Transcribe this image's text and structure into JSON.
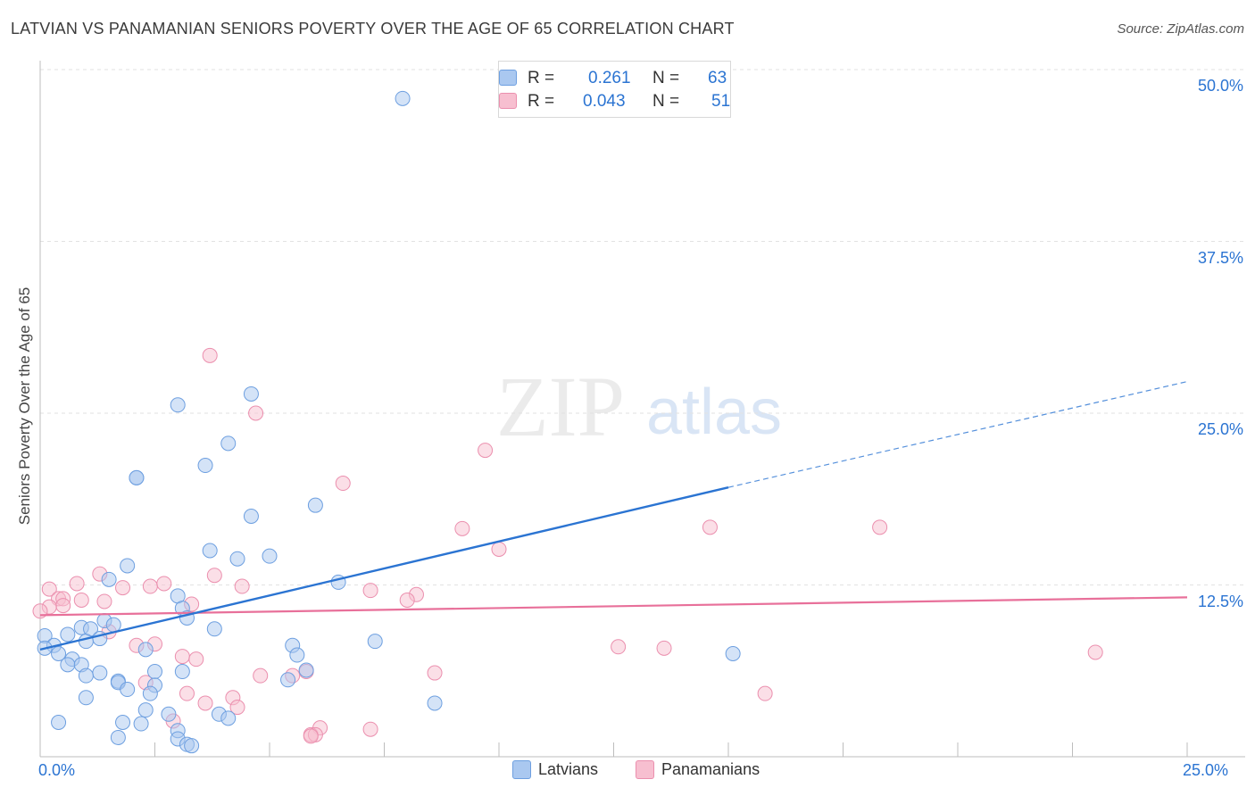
{
  "title": "LATVIAN VS PANAMANIAN SENIORS POVERTY OVER THE AGE OF 65 CORRELATION CHART",
  "source": "Source: ZipAtlas.com",
  "watermark": {
    "zip": "ZIP",
    "atlas": "atlas"
  },
  "legend": {
    "latvians": {
      "r_label": "R =",
      "r_value": "0.261",
      "n_label": "N =",
      "n_value": "63"
    },
    "panamanians": {
      "r_label": "R =",
      "r_value": "0.043",
      "n_label": "N =",
      "n_value": "51"
    }
  },
  "colors": {
    "latvians_fill": "#aac8f0",
    "latvians_stroke": "#6d9fe0",
    "latvians_line": "#2b74d2",
    "panamanians_fill": "#f7bfd0",
    "panamanians_stroke": "#eb8fae",
    "panamanians_line": "#e8709a",
    "grid": "#e2e2e2",
    "axis_text": "#2b74d2"
  },
  "chart_data": {
    "type": "scatter",
    "title": "LATVIAN VS PANAMANIAN SENIORS POVERTY OVER THE AGE OF 65 CORRELATION CHART",
    "xlabel": "",
    "ylabel": "Seniors Poverty Over the Age of 65",
    "xlim": [
      0,
      25
    ],
    "ylim": [
      0,
      50
    ],
    "x_tick_labels": [
      "0.0%",
      "25.0%"
    ],
    "y_ticks": [
      12.5,
      25.0,
      37.5,
      50.0
    ],
    "y_tick_labels": [
      "12.5%",
      "25.0%",
      "37.5%",
      "50.0%"
    ],
    "grid": true,
    "legend_position": "top-center",
    "series": [
      {
        "name": "Latvians",
        "r": 0.261,
        "n": 63,
        "trend": {
          "x0": 0.0,
          "y0": 7.8,
          "x1": 15.0,
          "y1": 19.6,
          "dash_to_x": 25.0,
          "dash_to_y": 27.3
        },
        "points": [
          [
            7.9,
            47.9
          ],
          [
            4.6,
            26.4
          ],
          [
            3.0,
            25.6
          ],
          [
            4.1,
            22.8
          ],
          [
            3.6,
            21.2
          ],
          [
            2.1,
            20.3
          ],
          [
            2.1,
            20.3
          ],
          [
            6.0,
            18.3
          ],
          [
            4.6,
            17.5
          ],
          [
            3.7,
            15.0
          ],
          [
            5.0,
            14.6
          ],
          [
            4.3,
            14.4
          ],
          [
            1.9,
            13.9
          ],
          [
            1.5,
            12.9
          ],
          [
            6.5,
            12.7
          ],
          [
            3.0,
            11.7
          ],
          [
            3.1,
            10.8
          ],
          [
            3.2,
            10.1
          ],
          [
            1.4,
            9.9
          ],
          [
            1.6,
            9.6
          ],
          [
            0.9,
            9.4
          ],
          [
            1.1,
            9.3
          ],
          [
            3.8,
            9.3
          ],
          [
            0.6,
            8.9
          ],
          [
            0.1,
            8.8
          ],
          [
            1.3,
            8.6
          ],
          [
            1.0,
            8.4
          ],
          [
            7.3,
            8.4
          ],
          [
            0.3,
            8.1
          ],
          [
            5.5,
            8.1
          ],
          [
            0.1,
            7.9
          ],
          [
            2.3,
            7.8
          ],
          [
            0.4,
            7.5
          ],
          [
            15.1,
            7.5
          ],
          [
            5.6,
            7.4
          ],
          [
            0.7,
            7.1
          ],
          [
            0.6,
            6.7
          ],
          [
            0.9,
            6.7
          ],
          [
            2.5,
            6.2
          ],
          [
            5.8,
            6.3
          ],
          [
            3.1,
            6.2
          ],
          [
            1.3,
            6.1
          ],
          [
            1.0,
            5.9
          ],
          [
            5.4,
            5.6
          ],
          [
            1.7,
            5.5
          ],
          [
            1.7,
            5.4
          ],
          [
            2.5,
            5.2
          ],
          [
            1.9,
            4.9
          ],
          [
            1.0,
            4.3
          ],
          [
            2.4,
            4.6
          ],
          [
            8.6,
            3.9
          ],
          [
            2.3,
            3.4
          ],
          [
            2.8,
            3.1
          ],
          [
            3.9,
            3.1
          ],
          [
            4.1,
            2.8
          ],
          [
            2.2,
            2.4
          ],
          [
            1.8,
            2.5
          ],
          [
            0.4,
            2.5
          ],
          [
            3.0,
            1.9
          ],
          [
            1.7,
            1.4
          ],
          [
            3.0,
            1.3
          ],
          [
            3.2,
            0.9
          ],
          [
            3.3,
            0.8
          ]
        ]
      },
      {
        "name": "Panamanians",
        "r": 0.043,
        "n": 51,
        "trend": {
          "x0": 0.0,
          "y0": 10.3,
          "x1": 25.0,
          "y1": 11.6
        },
        "points": [
          [
            3.7,
            29.2
          ],
          [
            4.7,
            25.0
          ],
          [
            9.7,
            22.3
          ],
          [
            6.6,
            19.9
          ],
          [
            9.2,
            16.6
          ],
          [
            14.6,
            16.7
          ],
          [
            18.3,
            16.7
          ],
          [
            10.0,
            15.1
          ],
          [
            3.8,
            13.2
          ],
          [
            2.4,
            12.4
          ],
          [
            4.4,
            12.4
          ],
          [
            1.8,
            12.3
          ],
          [
            7.2,
            12.1
          ],
          [
            0.2,
            12.2
          ],
          [
            0.8,
            12.6
          ],
          [
            1.3,
            13.3
          ],
          [
            2.7,
            12.6
          ],
          [
            8.2,
            11.8
          ],
          [
            8.0,
            11.4
          ],
          [
            0.4,
            11.5
          ],
          [
            0.5,
            11.5
          ],
          [
            0.9,
            11.4
          ],
          [
            1.4,
            11.3
          ],
          [
            0.5,
            11.0
          ],
          [
            3.3,
            11.1
          ],
          [
            0.2,
            10.9
          ],
          [
            0.0,
            10.6
          ],
          [
            1.5,
            9.1
          ],
          [
            2.5,
            8.2
          ],
          [
            2.1,
            8.1
          ],
          [
            12.6,
            8.0
          ],
          [
            13.6,
            7.9
          ],
          [
            23.0,
            7.6
          ],
          [
            3.1,
            7.3
          ],
          [
            3.4,
            7.1
          ],
          [
            5.8,
            6.2
          ],
          [
            5.5,
            5.9
          ],
          [
            8.6,
            6.1
          ],
          [
            4.8,
            5.9
          ],
          [
            2.3,
            5.4
          ],
          [
            3.2,
            4.6
          ],
          [
            15.8,
            4.6
          ],
          [
            4.2,
            4.3
          ],
          [
            3.6,
            3.9
          ],
          [
            4.3,
            3.6
          ],
          [
            2.9,
            2.6
          ],
          [
            6.1,
            2.1
          ],
          [
            7.2,
            2.0
          ],
          [
            5.9,
            1.6
          ],
          [
            6.0,
            1.6
          ],
          [
            5.9,
            1.5
          ]
        ]
      }
    ]
  }
}
